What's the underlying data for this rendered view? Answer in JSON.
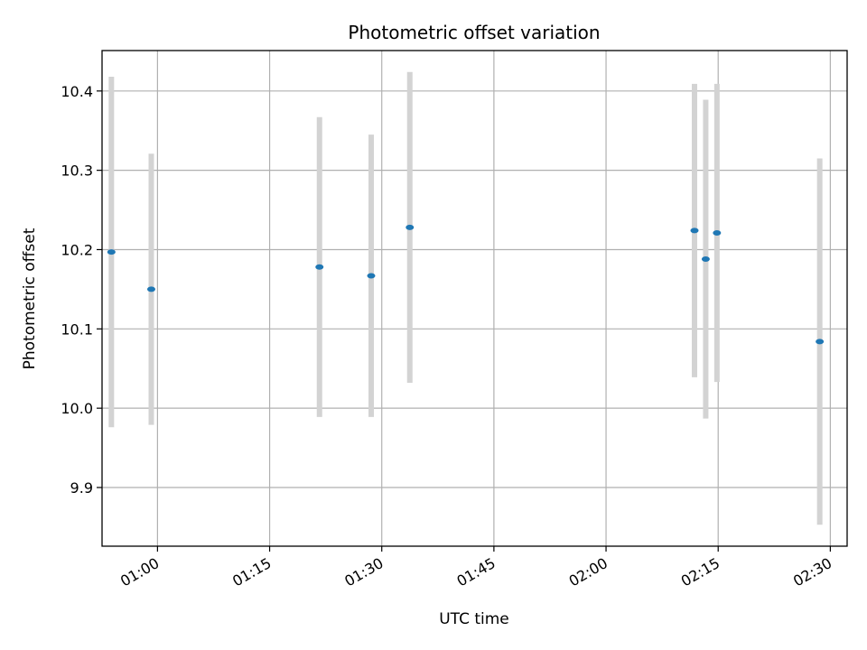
{
  "chart_data": {
    "type": "scatter",
    "title": "Photometric offset variation",
    "xlabel": "UTC time",
    "ylabel": "Photometric offset",
    "x_scale": "time",
    "xlim": [
      "00:52:35",
      "02:32:15"
    ],
    "ylim": [
      9.826,
      10.451
    ],
    "xticks": [
      "01:00",
      "01:15",
      "01:30",
      "01:45",
      "02:00",
      "02:15",
      "02:30"
    ],
    "yticks": [
      9.9,
      10.0,
      10.1,
      10.2,
      10.3,
      10.4
    ],
    "ytick_labels": [
      "9.9",
      "10.0",
      "10.1",
      "10.2",
      "10.3",
      "10.4"
    ],
    "grid": true,
    "series": [
      {
        "marker_color": "#1f77b4",
        "errorbar_color": "#d3d3d3",
        "points": [
          {
            "x": "00:53:50",
            "y": 10.197,
            "err": 0.221
          },
          {
            "x": "00:59:10",
            "y": 10.15,
            "err": 0.171
          },
          {
            "x": "01:21:40",
            "y": 10.178,
            "err": 0.189
          },
          {
            "x": "01:28:35",
            "y": 10.167,
            "err": 0.178
          },
          {
            "x": "01:33:45",
            "y": 10.228,
            "err": 0.196
          },
          {
            "x": "02:11:50",
            "y": 10.224,
            "err": 0.185
          },
          {
            "x": "02:13:20",
            "y": 10.188,
            "err": 0.201
          },
          {
            "x": "02:14:50",
            "y": 10.221,
            "err": 0.188
          },
          {
            "x": "02:28:35",
            "y": 10.084,
            "err": 0.231
          }
        ]
      }
    ]
  }
}
